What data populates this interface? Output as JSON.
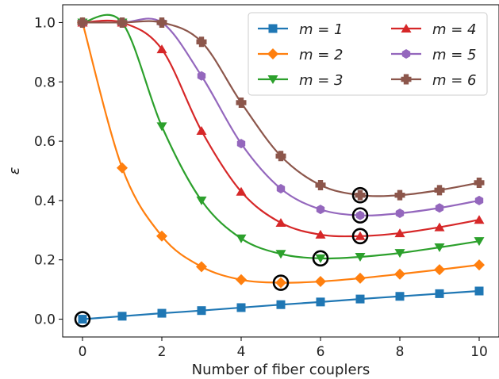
{
  "chart_data": {
    "type": "line",
    "title": "",
    "xlabel": "Number of fiber couplers",
    "ylabel": "ε",
    "xlim": [
      -0.5,
      10.5
    ],
    "ylim": [
      -0.06,
      1.06
    ],
    "xticks": [
      0,
      2,
      4,
      6,
      8,
      10
    ],
    "yticks": [
      0.0,
      0.2,
      0.4,
      0.6,
      0.8,
      1.0
    ],
    "ytick_labels": [
      "0.0",
      "0.2",
      "0.4",
      "0.6",
      "0.8",
      "1.0"
    ],
    "grid": false,
    "legend": {
      "placement": "top-right",
      "columns": 2
    },
    "series": [
      {
        "name": "m = 1",
        "color": "#1f77b4",
        "marker": "square",
        "x": [
          0,
          1,
          2,
          3,
          4,
          5,
          6,
          7,
          8,
          9,
          10
        ],
        "values": [
          0.0,
          0.01,
          0.02,
          0.029,
          0.039,
          0.049,
          0.058,
          0.068,
          0.077,
          0.086,
          0.095
        ],
        "optimum_x": 0
      },
      {
        "name": "m = 2",
        "color": "#ff7f0e",
        "marker": "diamond",
        "x": [
          0,
          1,
          2,
          3,
          4,
          5,
          6,
          7,
          8,
          9,
          10
        ],
        "values": [
          1.0,
          0.51,
          0.28,
          0.177,
          0.133,
          0.123,
          0.127,
          0.138,
          0.152,
          0.167,
          0.183
        ],
        "optimum_x": 5
      },
      {
        "name": "m = 3",
        "color": "#2ca02c",
        "marker": "triangle-down",
        "x": [
          0,
          1,
          2,
          3,
          4,
          5,
          6,
          7,
          8,
          9,
          10
        ],
        "values": [
          1.0,
          1.0,
          0.65,
          0.4,
          0.272,
          0.22,
          0.205,
          0.21,
          0.223,
          0.242,
          0.263
        ],
        "optimum_x": 6
      },
      {
        "name": "m = 4",
        "color": "#d62728",
        "marker": "triangle-up",
        "x": [
          0,
          1,
          2,
          3,
          4,
          5,
          6,
          7,
          8,
          9,
          10
        ],
        "values": [
          1.0,
          1.0,
          0.91,
          0.635,
          0.43,
          0.325,
          0.285,
          0.28,
          0.29,
          0.31,
          0.335
        ],
        "optimum_x": 7
      },
      {
        "name": "m = 5",
        "color": "#9467bd",
        "marker": "hexagon",
        "x": [
          0,
          1,
          2,
          3,
          4,
          5,
          6,
          7,
          8,
          9,
          10
        ],
        "values": [
          1.0,
          1.0,
          1.0,
          0.82,
          0.592,
          0.44,
          0.37,
          0.35,
          0.357,
          0.375,
          0.4
        ],
        "optimum_x": 7
      },
      {
        "name": "m = 6",
        "color": "#8c564b",
        "marker": "plus",
        "x": [
          0,
          1,
          2,
          3,
          4,
          5,
          6,
          7,
          8,
          9,
          10
        ],
        "values": [
          1.0,
          1.0,
          1.0,
          0.935,
          0.73,
          0.55,
          0.452,
          0.418,
          0.418,
          0.435,
          0.46
        ],
        "optimum_x": 7
      }
    ]
  }
}
